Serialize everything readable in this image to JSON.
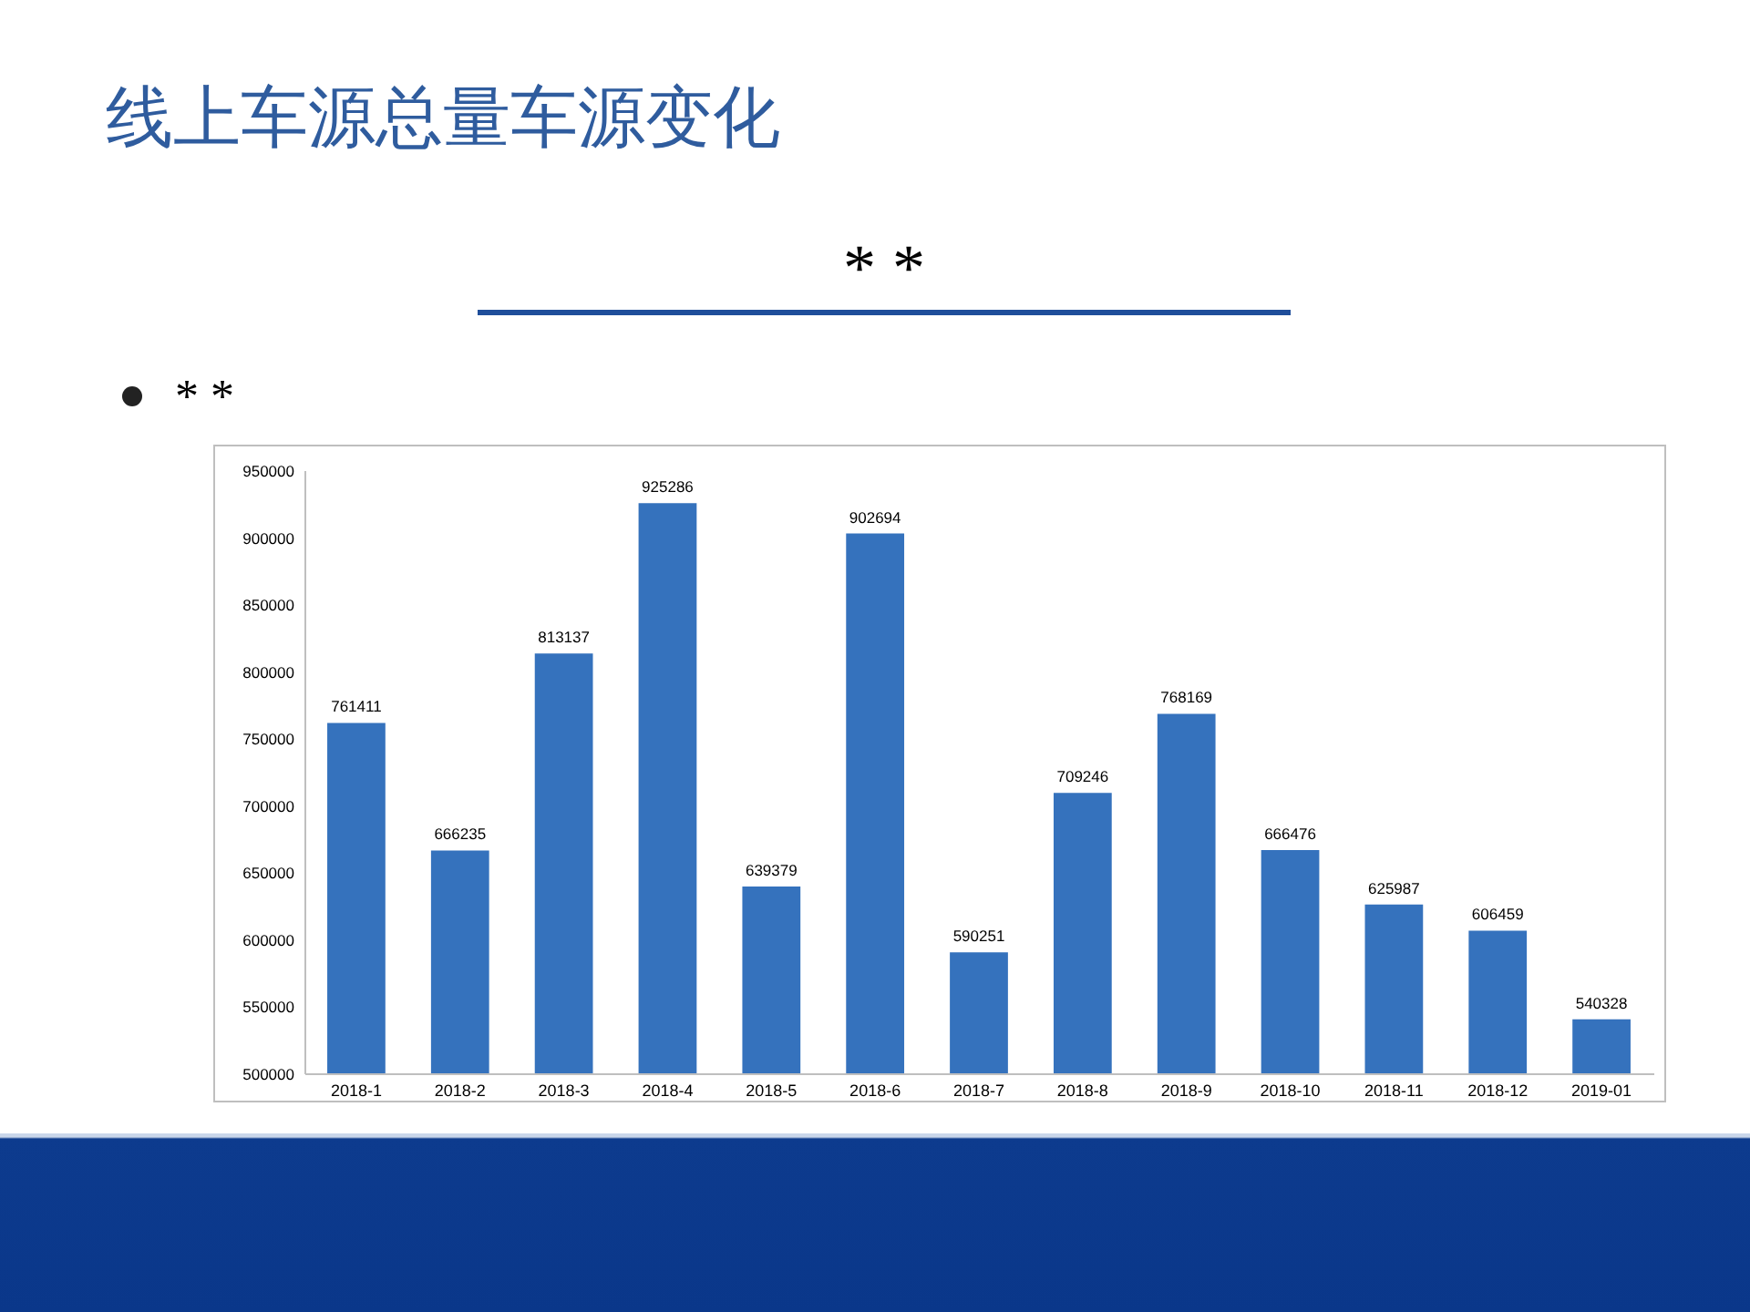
{
  "chart_data": {
    "type": "bar",
    "title": "线上车源总量车源变化",
    "subtitle": "* *",
    "annotations": [
      "* *"
    ],
    "categories": [
      "2018-1",
      "2018-2",
      "2018-3",
      "2018-4",
      "2018-5",
      "2018-6",
      "2018-7",
      "2018-8",
      "2018-9",
      "2018-10",
      "2018-11",
      "2018-12",
      "2019-01"
    ],
    "values": [
      761411,
      666235,
      813137,
      925286,
      639379,
      902694,
      590251,
      709246,
      768169,
      666476,
      625987,
      606459,
      540328
    ],
    "color": "#3572bd",
    "ylim": [
      500000,
      950000
    ],
    "yticks": [
      500000,
      550000,
      600000,
      650000,
      700000,
      750000,
      800000,
      850000,
      900000,
      950000
    ],
    "data_labels": true
  }
}
